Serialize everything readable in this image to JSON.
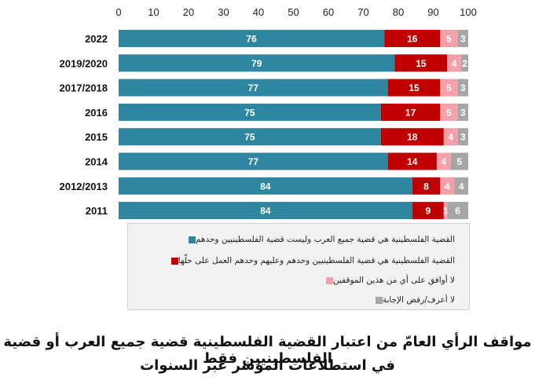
{
  "chart_data": {
    "type": "bar",
    "orientation": "horizontal",
    "stacked": true,
    "categories": [
      "2022",
      "2019/2020",
      "2017/2018",
      "2016",
      "2015",
      "2014",
      "2012/2013",
      "2011"
    ],
    "series": [
      {
        "name": "القضية الفلسطينية هي قضية جميع العرب وليست قضية الفلسطينيين وحدهم",
        "color": "#2e86a0",
        "values": [
          76,
          79,
          77,
          75,
          75,
          77,
          84,
          84
        ]
      },
      {
        "name": "القضية الفلسطينية هي قضية الفلسطينيين وحدهم وعليهم وحدهم العمل على حلّها",
        "color": "#c00000",
        "values": [
          16,
          15,
          15,
          17,
          18,
          14,
          8,
          9
        ]
      },
      {
        "name": "لا أوافق على أي من هذين الموقفين",
        "color": "#f4a0a8",
        "values": [
          5,
          4,
          5,
          5,
          4,
          4,
          4,
          1
        ]
      },
      {
        "name": "لا أعرف/رفض الإجابة",
        "color": "#a6a6a6",
        "values": [
          3,
          2,
          3,
          3,
          3,
          5,
          4,
          6
        ]
      }
    ],
    "xlim": [
      0,
      100
    ],
    "xticks": [
      "0",
      "10",
      "20",
      "30",
      "40",
      "50",
      "60",
      "70",
      "80",
      "90",
      "100"
    ],
    "grid": false,
    "legend_position": "bottom"
  },
  "caption": {
    "line1": "مواقف الرأي العامّ من اعتبار القضية الفلسطينية قضية جميع العرب أو قضية الفلسطينيين فقط",
    "line2": "في استطلاعات المؤشر عبر السنوات"
  }
}
